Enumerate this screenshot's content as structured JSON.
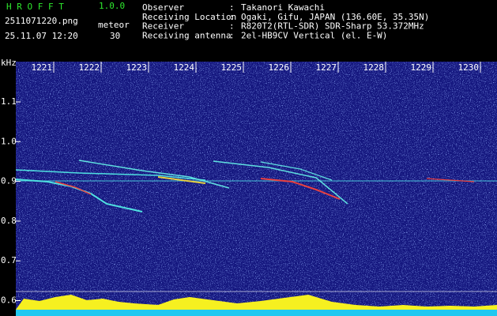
{
  "header": {
    "app_name": "H R O F F T",
    "version": "1.0.0",
    "file": "2511071220.png",
    "mode": "meteor",
    "datetime": "25.11.07 12:20",
    "count": "30",
    "fields": [
      {
        "label": "Observer",
        "value": "Takanori Kawachi"
      },
      {
        "label": "Receiving Location",
        "value": "Ogaki, Gifu, JAPAN (136.60E, 35.35N)"
      },
      {
        "label": "Receiver",
        "value": "R820T2(RTL-SDR) SDR-Sharp 53.372MHz"
      },
      {
        "label": "Receiving antenna",
        "value": "2el-HB9CV Vertical (el. E-W)"
      }
    ]
  },
  "plot": {
    "unit": "kHz",
    "x_labels": [
      "1221",
      "1222",
      "1223",
      "1224",
      "1225",
      "1226",
      "1227",
      "1228",
      "1229",
      "1230"
    ],
    "y_labels": [
      "1.1",
      "1.0",
      "0.9",
      "0.8",
      "0.7",
      "0.6"
    ]
  }
}
